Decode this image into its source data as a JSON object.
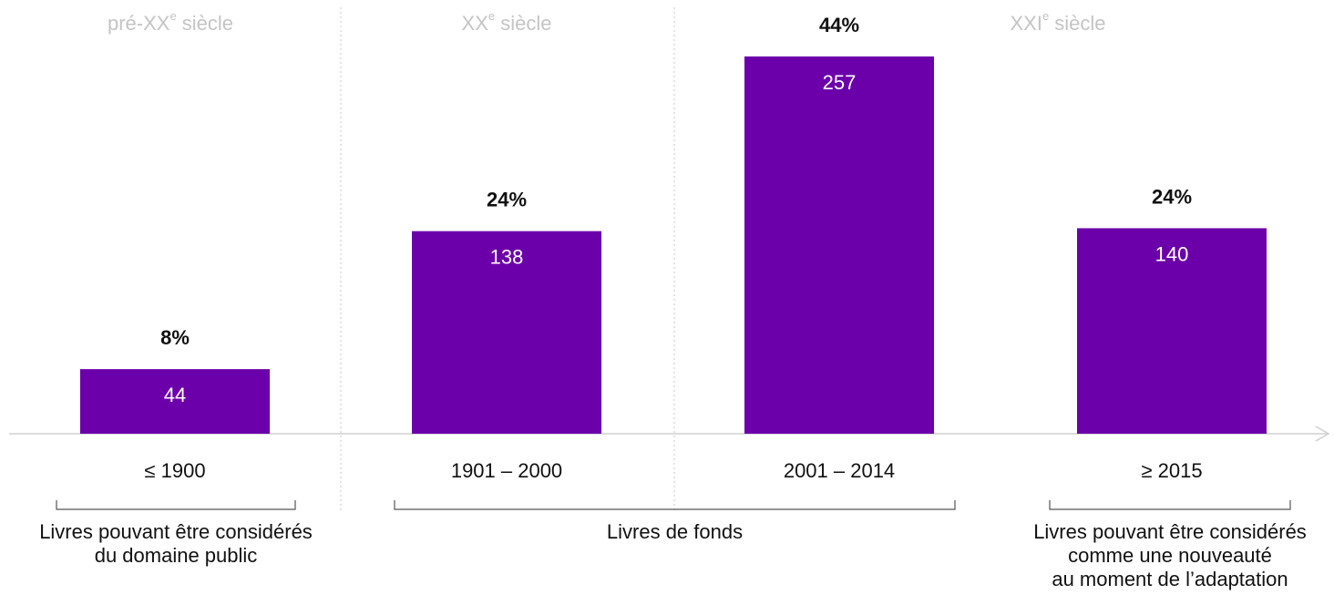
{
  "chart_data": {
    "type": "bar",
    "eras": [
      {
        "text": "pré-XX",
        "sup": "e",
        "rest": " siècle"
      },
      {
        "text": "XX",
        "sup": "e",
        "rest": " siècle"
      },
      {
        "text": "XXI",
        "sup": "e",
        "rest": " siècle"
      }
    ],
    "categories": [
      "≤ 1900",
      "1901 – 2000",
      "2001 – 2014",
      "≥ 2015"
    ],
    "values": [
      44,
      138,
      257,
      140
    ],
    "percent_labels": [
      "8%",
      "24%",
      "44%",
      "24%"
    ],
    "color": "#6b00aa",
    "ylim": [
      0,
      280
    ],
    "groups": [
      {
        "lines": [
          "Livres pouvant être considérés",
          "du domaine public"
        ]
      },
      {
        "lines": [
          "Livres de fonds"
        ]
      },
      {
        "lines": [
          "Livres pouvant être considérés",
          "comme une nouveauté",
          "au moment de l’adaptation"
        ]
      }
    ]
  }
}
